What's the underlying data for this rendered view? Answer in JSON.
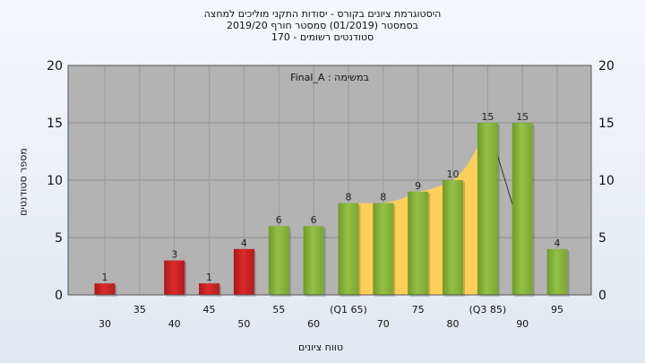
{
  "header": {
    "line1": "היסטוגרמת ציונים בקורס - יסודות התקני מוליכים למחצה",
    "line2": "בסמסטר  (01/2019)  סמסטר חורף 2019/20",
    "line3": "סטודנטים רשומים - 170"
  },
  "chart_data": {
    "type": "bar",
    "subtitle": "במשימה : Final_A",
    "xlabel": "טווח ציונים",
    "ylabel": "מספר סטודנטים",
    "ylim": [
      0,
      20
    ],
    "yticks": [
      0,
      5,
      10,
      15,
      20
    ],
    "x_ticks": [
      "30",
      "35",
      "40",
      "45",
      "50",
      "55",
      "60",
      "(Q1 65)",
      "70",
      "75",
      "80",
      "(Q3 85)",
      "90",
      "95"
    ],
    "bars": [
      {
        "x": 30,
        "value": 1,
        "color": "red"
      },
      {
        "x": 40,
        "value": 3,
        "color": "red"
      },
      {
        "x": 45,
        "value": 1,
        "color": "red"
      },
      {
        "x": 50,
        "value": 4,
        "color": "red"
      },
      {
        "x": 55,
        "value": 6,
        "color": "green"
      },
      {
        "x": 60,
        "value": 6,
        "color": "green"
      },
      {
        "x": 65,
        "value": 8,
        "color": "green"
      },
      {
        "x": 70,
        "value": 8,
        "color": "green"
      },
      {
        "x": 75,
        "value": 9,
        "color": "green"
      },
      {
        "x": 80,
        "value": 10,
        "color": "green"
      },
      {
        "x": 85,
        "value": 15,
        "color": "green"
      },
      {
        "x": 90,
        "value": 15,
        "color": "green"
      },
      {
        "x": 95,
        "value": 4,
        "color": "green"
      }
    ],
    "area_x_range": [
      65,
      85
    ],
    "trend": [
      {
        "x": 65,
        "y": 8
      },
      {
        "x": 70,
        "y": 8
      },
      {
        "x": 75,
        "y": 9
      },
      {
        "x": 80,
        "y": 10
      },
      {
        "x": 85,
        "y": 15
      },
      {
        "x": 90,
        "y": 5
      }
    ],
    "grid": true,
    "colors": {
      "plot_bg": "#b3b3b3",
      "red_bar": "#dd2a2a",
      "green_bar": "#93c144",
      "quartile_area": "#ffcf5a",
      "trend_line": "#333333"
    }
  }
}
